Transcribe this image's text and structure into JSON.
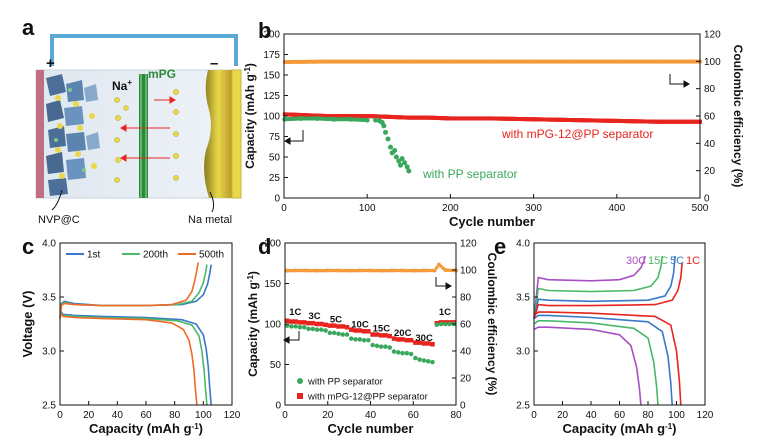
{
  "panel_letters": {
    "a": "a",
    "b": "b",
    "c": "c",
    "d": "d",
    "e": "e"
  },
  "panel_a": {
    "plus": "+",
    "minus": "–",
    "ion": "Na+",
    "ion_base": "Na",
    "ion_sup": "+",
    "membrane_label": "mPG",
    "cathode_label": "NVP@C",
    "anode_label": "Na metal"
  },
  "colors": {
    "orange": "#f59a3a",
    "red": "#e8241f",
    "green": "#3aa85c",
    "blue": "#3a78c9",
    "green200": "#49b86a",
    "orange500": "#f06a2a",
    "purple": "#a64fc4",
    "membrane": "#2a8a3a",
    "electrode_left": "#c06f82",
    "electrode_right": "#e8d84a",
    "wire": "#5aa8d8"
  },
  "chart_data": [
    {
      "id": "b",
      "type": "scatter",
      "xlabel": "Cycle number",
      "ylabel": "Capacity (mAh g-1)",
      "ylabel_base": "Capacity (mAh g",
      "ylabel_sup": "-1",
      "ylabel_close": ")",
      "y2label": "Coulombic efficiency (%)",
      "xlim": [
        0,
        500
      ],
      "ylim": [
        0,
        200
      ],
      "y2lim": [
        0,
        120
      ],
      "xticks": [
        "0",
        "100",
        "200",
        "300",
        "400",
        "500"
      ],
      "yticks": [
        "0",
        "25",
        "50",
        "75",
        "100",
        "125",
        "150",
        "175",
        "200"
      ],
      "y2ticks": [
        "0",
        "20",
        "40",
        "60",
        "80",
        "100",
        "120"
      ],
      "series": [
        {
          "name": "with mPG-12@PP separator",
          "color": "red",
          "axis": "left",
          "x": [
            1,
            25,
            50,
            75,
            100,
            125,
            150,
            175,
            200,
            250,
            300,
            350,
            400,
            450,
            500
          ],
          "values": [
            102,
            101,
            100,
            100,
            100,
            99,
            98,
            98,
            97,
            97,
            96,
            95,
            94,
            93,
            93
          ]
        },
        {
          "name": "with PP separator",
          "color": "green",
          "axis": "left",
          "x": [
            1,
            20,
            40,
            60,
            80,
            100,
            110,
            115,
            118,
            120,
            122,
            125,
            128,
            130,
            133,
            135,
            138,
            140,
            142,
            145,
            148,
            150
          ],
          "values": [
            96,
            97,
            97,
            96,
            96,
            95,
            95,
            94,
            92,
            88,
            80,
            72,
            62,
            55,
            58,
            50,
            45,
            40,
            48,
            43,
            38,
            33
          ]
        },
        {
          "name": "Coulombic efficiency",
          "color": "orange",
          "axis": "right",
          "x": [
            1,
            50,
            100,
            150,
            200,
            250,
            300,
            350,
            400,
            450,
            500
          ],
          "values": [
            99.5,
            99.8,
            99.8,
            99.8,
            99.8,
            99.8,
            99.8,
            99.8,
            99.8,
            99.8,
            99.8
          ]
        }
      ],
      "annotations": [
        "with mPG-12@PP separator",
        "with PP separator"
      ]
    },
    {
      "id": "c",
      "type": "line",
      "xlabel": "Capacity (mAh g-1)",
      "xlabel_base": "Capacity (mAh g",
      "xlabel_sup": "-1",
      "xlabel_close": ")",
      "ylabel": "Voltage (V)",
      "xlim": [
        0,
        120
      ],
      "ylim": [
        2.5,
        4.0
      ],
      "xticks": [
        "0",
        "20",
        "40",
        "60",
        "80",
        "100",
        "120"
      ],
      "yticks": [
        "2.5",
        "3.0",
        "3.5",
        "4.0"
      ],
      "legend": [
        "1st",
        "200th",
        "500th"
      ],
      "series": [
        {
          "name": "1st",
          "color": "blue",
          "charge": {
            "x": [
              0,
              1,
              3,
              10,
              30,
              60,
              85,
              95,
              100,
              103,
              104.5,
              105.5
            ],
            "y": [
              3.3,
              3.44,
              3.46,
              3.44,
              3.42,
              3.42,
              3.43,
              3.46,
              3.52,
              3.62,
              3.72,
              3.8
            ]
          },
          "discharge": {
            "x": [
              0,
              2,
              10,
              30,
              60,
              85,
              95,
              100,
              102,
              103.5,
              104.5,
              105.5
            ],
            "y": [
              3.38,
              3.34,
              3.33,
              3.32,
              3.31,
              3.29,
              3.25,
              3.15,
              3.02,
              2.85,
              2.65,
              2.5
            ]
          }
        },
        {
          "name": "200th",
          "color": "green200",
          "charge": {
            "x": [
              0,
              1,
              3,
              10,
              30,
              60,
              82,
              92,
              97,
              100,
              101.5,
              102.5
            ],
            "y": [
              3.3,
              3.43,
              3.45,
              3.43,
              3.42,
              3.42,
              3.43,
              3.46,
              3.54,
              3.63,
              3.72,
              3.8
            ]
          },
          "discharge": {
            "x": [
              0,
              2,
              10,
              30,
              60,
              82,
              92,
              97,
              99,
              100.5,
              101.5,
              102.5
            ],
            "y": [
              3.37,
              3.33,
              3.32,
              3.31,
              3.3,
              3.28,
              3.24,
              3.14,
              3.0,
              2.82,
              2.65,
              2.5
            ]
          }
        },
        {
          "name": "500th",
          "color": "orange500",
          "charge": {
            "x": [
              0,
              1,
              3,
              10,
              30,
              60,
              78,
              88,
              92,
              94,
              95.5,
              96.5
            ],
            "y": [
              3.3,
              3.42,
              3.44,
              3.43,
              3.42,
              3.42,
              3.43,
              3.47,
              3.55,
              3.65,
              3.75,
              3.82
            ]
          },
          "discharge": {
            "x": [
              0,
              2,
              10,
              30,
              60,
              78,
              86,
              90,
              92,
              93.5,
              94.5,
              95.5
            ],
            "y": [
              3.36,
              3.32,
              3.31,
              3.3,
              3.29,
              3.26,
              3.2,
              3.1,
              2.97,
              2.82,
              2.65,
              2.5
            ]
          }
        }
      ]
    },
    {
      "id": "d",
      "type": "scatter",
      "xlabel": "Cycle number",
      "ylabel": "Capacity (mAh g-1)",
      "ylabel_base": "Capacity (mAh g",
      "ylabel_sup": "-1",
      "ylabel_close": ")",
      "y2label": "Coulombic efficiency (%)",
      "xlim": [
        0,
        80
      ],
      "ylim": [
        0,
        200
      ],
      "y2lim": [
        0,
        120
      ],
      "xticks": [
        "0",
        "20",
        "40",
        "60",
        "80"
      ],
      "yticks": [
        "0",
        "50",
        "100",
        "150",
        "200"
      ],
      "y2ticks": [
        "0",
        "20",
        "40",
        "60",
        "80",
        "100",
        "120"
      ],
      "rate_labels": [
        "1C",
        "3C",
        "5C",
        "10C",
        "15C",
        "20C",
        "30C",
        "1C"
      ],
      "legend": [
        "with PP separator",
        "with mPG-12@PP separator"
      ],
      "series": [
        {
          "name": "with mPG-12@PP separator",
          "color": "red",
          "axis": "left",
          "x": [
            1,
            3,
            5,
            7,
            9,
            11,
            13,
            15,
            17,
            19,
            21,
            23,
            25,
            27,
            29,
            31,
            33,
            35,
            37,
            39,
            41,
            43,
            45,
            47,
            49,
            51,
            53,
            55,
            57,
            59,
            61,
            63,
            65,
            67,
            69,
            71,
            73,
            75,
            77,
            79
          ],
          "values": [
            104,
            103,
            103,
            102,
            102,
            101,
            101,
            100,
            100,
            99,
            98,
            98,
            97,
            97,
            96,
            93,
            92,
            92,
            91,
            91,
            87,
            87,
            86,
            86,
            85,
            82,
            81,
            81,
            80,
            80,
            77,
            77,
            76,
            76,
            75,
            101,
            102,
            102,
            102,
            102
          ]
        },
        {
          "name": "with PP separator",
          "color": "green",
          "axis": "left",
          "x": [
            1,
            3,
            5,
            7,
            9,
            11,
            13,
            15,
            17,
            19,
            21,
            23,
            25,
            27,
            29,
            31,
            33,
            35,
            37,
            39,
            41,
            43,
            45,
            47,
            49,
            51,
            53,
            55,
            57,
            59,
            61,
            63,
            65,
            67,
            69,
            71,
            73,
            75,
            77,
            79
          ],
          "values": [
            98,
            97,
            97,
            96,
            96,
            94,
            94,
            93,
            93,
            92,
            89,
            89,
            88,
            87,
            87,
            82,
            81,
            81,
            80,
            80,
            74,
            73,
            72,
            72,
            71,
            66,
            65,
            64,
            64,
            63,
            58,
            56,
            55,
            54,
            53,
            99,
            100,
            100,
            100,
            100
          ]
        },
        {
          "name": "Coulombic efficiency",
          "color": "orange",
          "axis": "right",
          "x": [
            1,
            5,
            10,
            15,
            20,
            25,
            30,
            35,
            40,
            45,
            50,
            55,
            60,
            65,
            70,
            72,
            75,
            80
          ],
          "values": [
            99.5,
            99.6,
            99.6,
            99.5,
            99.6,
            99.6,
            99.5,
            99.6,
            99.6,
            99.5,
            99.6,
            99.6,
            99.5,
            99.6,
            99.6,
            104,
            100,
            99.6
          ]
        }
      ]
    },
    {
      "id": "e",
      "type": "line",
      "xlabel": "Capacity (mAh g-1)",
      "xlabel_base": "Capacity (mAh g",
      "xlabel_sup": "-1",
      "xlabel_close": ")",
      "xlim": [
        0,
        120
      ],
      "ylim": [
        2.5,
        4.0
      ],
      "xticks": [
        "0",
        "20",
        "40",
        "60",
        "80",
        "100",
        "120"
      ],
      "yticks": [
        "2.5",
        "3.0",
        "3.5",
        "4.0"
      ],
      "rate_legend": [
        "30C",
        "15C",
        "5C",
        "1C"
      ],
      "series": [
        {
          "name": "30C",
          "color": "purple",
          "charge": {
            "x": [
              0,
              3,
              10,
              40,
              60,
              70,
              75,
              77,
              78
            ],
            "y": [
              3.3,
              3.68,
              3.66,
              3.65,
              3.66,
              3.7,
              3.77,
              3.83,
              3.88
            ]
          },
          "discharge": {
            "x": [
              0,
              3,
              10,
              40,
              60,
              68,
              72,
              74,
              75
            ],
            "y": [
              3.2,
              3.22,
              3.22,
              3.2,
              3.15,
              3.05,
              2.85,
              2.65,
              2.5
            ]
          }
        },
        {
          "name": "15C",
          "color": "green200",
          "charge": {
            "x": [
              0,
              3,
              10,
              40,
              70,
              82,
              87,
              89,
              90
            ],
            "y": [
              3.3,
              3.58,
              3.56,
              3.55,
              3.56,
              3.6,
              3.68,
              3.78,
              3.88
            ]
          },
          "discharge": {
            "x": [
              0,
              3,
              10,
              40,
              70,
              80,
              84,
              86,
              87
            ],
            "y": [
              3.25,
              3.28,
              3.28,
              3.26,
              3.21,
              3.12,
              2.9,
              2.68,
              2.5
            ]
          }
        },
        {
          "name": "5C",
          "color": "blue",
          "charge": {
            "x": [
              0,
              3,
              10,
              40,
              80,
              92,
              96,
              98,
              99
            ],
            "y": [
              3.3,
              3.48,
              3.47,
              3.46,
              3.47,
              3.51,
              3.6,
              3.72,
              3.88
            ]
          },
          "discharge": {
            "x": [
              0,
              3,
              10,
              40,
              80,
              90,
              94,
              96,
              97
            ],
            "y": [
              3.3,
              3.33,
              3.33,
              3.31,
              3.27,
              3.18,
              2.95,
              2.7,
              2.5
            ]
          }
        },
        {
          "name": "1C",
          "color": "red",
          "charge": {
            "x": [
              0,
              3,
              10,
              40,
              85,
              97,
              101,
              103,
              104
            ],
            "y": [
              3.3,
              3.43,
              3.42,
              3.42,
              3.43,
              3.47,
              3.56,
              3.68,
              3.82
            ]
          },
          "discharge": {
            "x": [
              0,
              3,
              10,
              40,
              85,
              96,
              100,
              102,
              103
            ],
            "y": [
              3.33,
              3.36,
              3.36,
              3.35,
              3.32,
              3.24,
              3.0,
              2.72,
              2.5
            ]
          }
        }
      ]
    }
  ]
}
